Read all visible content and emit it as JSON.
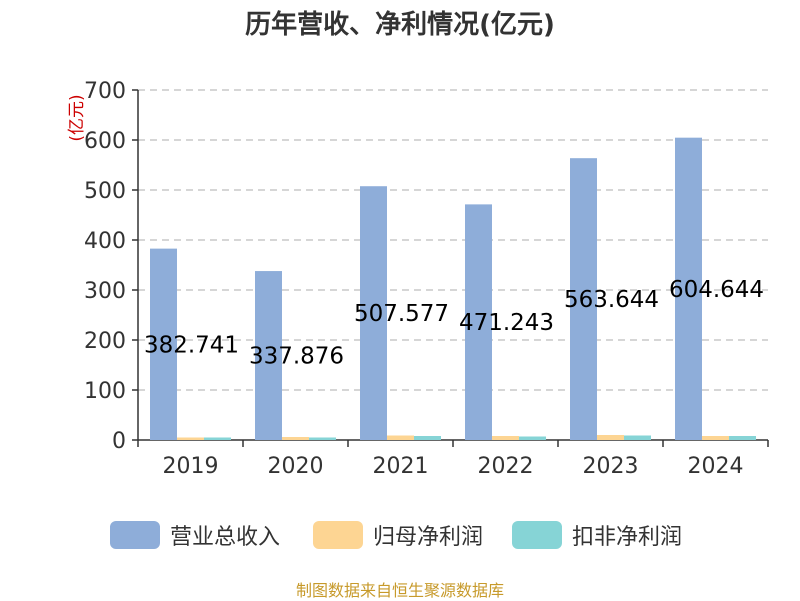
{
  "title": "历年营收、净利情况(亿元)",
  "source_note": "制图数据来自恒生聚源数据库",
  "colors": {
    "revenue": "#8eadd9",
    "net_profit": "#fdd593",
    "deducted_net_profit": "#86d4d6",
    "unit_label": "#cc0000",
    "grid": "#c8c8c8",
    "axis": "#333333"
  },
  "chart_data": {
    "type": "bar",
    "title": "历年营收、净利情况(亿元)",
    "ylabel": "(亿元)",
    "xlabel": "",
    "ylim": [
      0,
      700
    ],
    "yticks": [
      0,
      100,
      200,
      300,
      400,
      500,
      600,
      700
    ],
    "grid": true,
    "legend_position": "bottom",
    "categories": [
      "2019",
      "2020",
      "2021",
      "2022",
      "2023",
      "2024"
    ],
    "series": [
      {
        "name": "营业总收入",
        "values": [
          382.741,
          337.876,
          507.577,
          471.243,
          563.644,
          604.644
        ],
        "labels": [
          "382.741",
          "337.876",
          "507.577",
          "471.243",
          "563.644",
          "604.644"
        ]
      },
      {
        "name": "归母净利润",
        "values": [
          5,
          6,
          9,
          8,
          10,
          8
        ]
      },
      {
        "name": "扣非净利润",
        "values": [
          5,
          5,
          8,
          7,
          9,
          8
        ]
      }
    ]
  }
}
